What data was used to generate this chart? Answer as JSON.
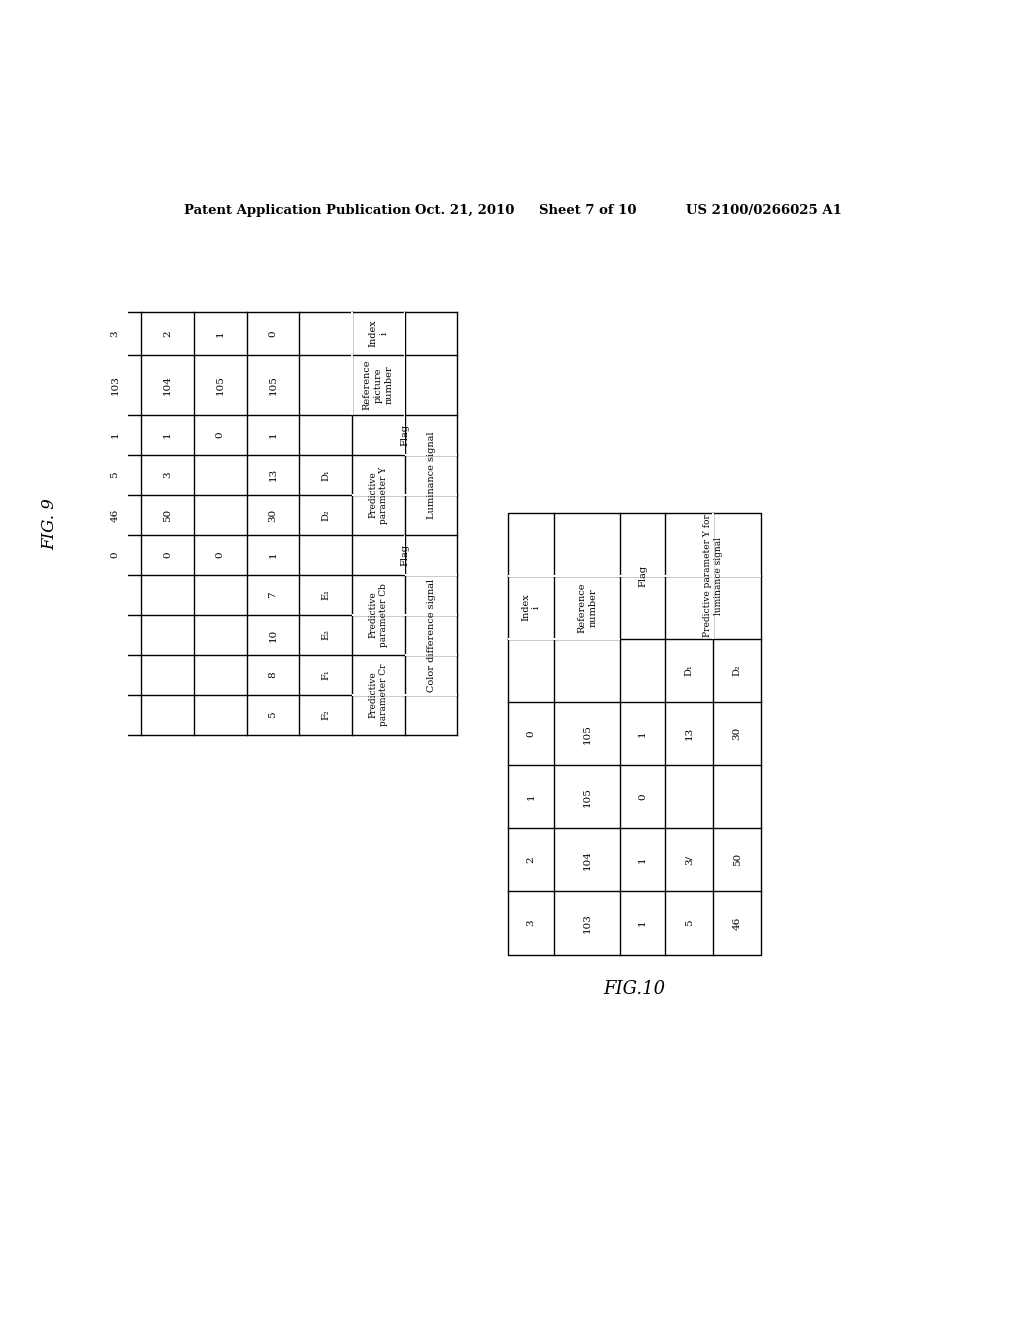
{
  "header_left": "Patent Application Publication",
  "header_mid": "Oct. 21, 2010  Sheet 7 of 10",
  "header_right": "US 2100/0266025 A1",
  "fig9_label": "FIG.9",
  "fig10_label": "FIG.10",
  "fig9": {
    "data": [
      [
        "0",
        "105",
        "1",
        "13",
        "30",
        "1",
        "7",
        "10",
        "8",
        "5"
      ],
      [
        "1",
        "105",
        "0",
        "",
        "",
        "0",
        "",
        "",
        "",
        ""
      ],
      [
        "2",
        "104",
        "1",
        "3",
        "50",
        "0",
        "",
        "",
        "",
        ""
      ],
      [
        "3",
        "103",
        "1",
        "5",
        "46",
        "0",
        "",
        "",
        "",
        ""
      ]
    ]
  },
  "fig10": {
    "data": [
      [
        "0",
        "105",
        "1",
        "13",
        "30"
      ],
      [
        "1",
        "105",
        "0",
        "",
        ""
      ],
      [
        "2",
        "104",
        "1",
        "3/",
        "50"
      ],
      [
        "3",
        "103",
        "1",
        "5",
        "46"
      ]
    ]
  },
  "bg_color": "#ffffff",
  "line_color": "#000000",
  "text_color": "#000000"
}
